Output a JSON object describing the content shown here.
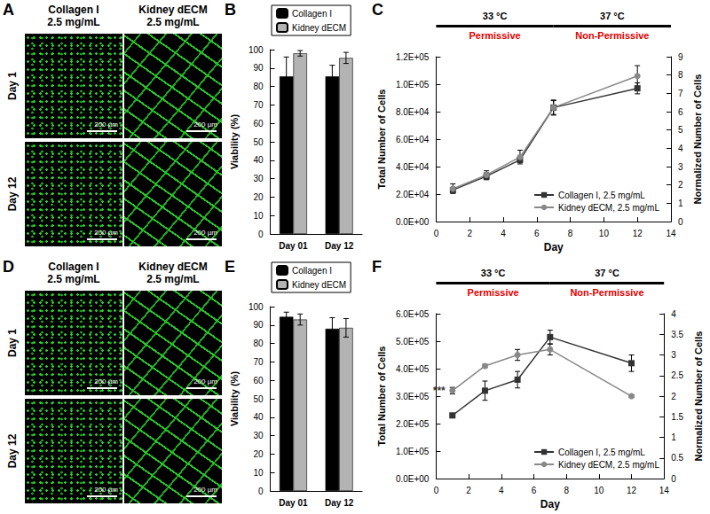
{
  "image_panels": [
    {
      "panel": "A",
      "columns": [
        {
          "title": "Collagen I",
          "subtitle": "2.5 mg/mL"
        },
        {
          "title": "Kidney dECM",
          "subtitle": "2.5 mg/mL"
        }
      ],
      "rows": [
        "Day 1",
        "Day 12"
      ],
      "scale_bar": "200 µm"
    },
    {
      "panel": "D",
      "columns": [
        {
          "title": "Collagen I",
          "subtitle": "2.5 mg/mL"
        },
        {
          "title": "Kidney dECM",
          "subtitle": "2.5 mg/mL"
        }
      ],
      "rows": [
        "Day 1",
        "Day 12"
      ],
      "scale_bar": "200 µm"
    }
  ],
  "chart_data": [
    {
      "panel": "B",
      "type": "bar",
      "ylabel": "Viability (%)",
      "categories": [
        "Day 01",
        "Day 12"
      ],
      "series": [
        {
          "name": "Collagen I",
          "color": "#000000",
          "values": [
            85.5,
            85.5
          ],
          "errors": [
            10.5,
            6
          ]
        },
        {
          "name": "Kidney dECM",
          "color": "#b3b3b3",
          "values": [
            98,
            95.5
          ],
          "errors": [
            1.5,
            3
          ]
        }
      ],
      "ylim": [
        0,
        100
      ],
      "yticks": [
        0,
        10,
        20,
        30,
        40,
        50,
        60,
        70,
        80,
        90,
        100
      ],
      "grid": false,
      "legend": "top"
    },
    {
      "panel": "C",
      "type": "line",
      "xlabel": "Day",
      "ylabel": "Total Number of Cells",
      "y2label": "Normalized Number of Cells",
      "x": [
        1,
        3,
        5,
        7,
        12
      ],
      "series": [
        {
          "name": "Collagen I, 2.5 mg/mL",
          "color": "#333333",
          "marker": "square",
          "line_style": "solid",
          "values": [
            23000,
            33000,
            45000,
            83000,
            97000
          ],
          "errors": [
            1500,
            2500,
            2000,
            5000,
            4000
          ]
        },
        {
          "name": "Kidney dECM, 2.5 mg/mL",
          "color": "#888888",
          "marker": "circle",
          "line_style": "solid",
          "values": [
            24000,
            34000,
            47000,
            83000,
            106000
          ],
          "errors": [
            3500,
            3000,
            5000,
            5500,
            7500
          ]
        }
      ],
      "xlim": [
        0,
        14
      ],
      "xticks": [
        0,
        2,
        4,
        6,
        8,
        10,
        12,
        14
      ],
      "ylim": [
        0,
        120000
      ],
      "yticks": [
        {
          "value": 0,
          "label": "0.0E+00"
        },
        {
          "value": 20000,
          "label": "2.0E+04"
        },
        {
          "value": 40000,
          "label": "4.0E+04"
        },
        {
          "value": 60000,
          "label": "6.0E+04"
        },
        {
          "value": 80000,
          "label": "8.0E+04"
        },
        {
          "value": 100000,
          "label": "1.0E+05"
        },
        {
          "value": 120000,
          "label": "1.2E+05"
        }
      ],
      "y2lim": [
        0,
        9
      ],
      "y2ticks": [
        0,
        1,
        2,
        3,
        4,
        5,
        6,
        7,
        8,
        9
      ],
      "periods": [
        {
          "label": "33 °C",
          "sublabel": "Permissive",
          "start": 0,
          "end": 7
        },
        {
          "label": "37 °C",
          "sublabel": "Non-Permissive",
          "start": 7,
          "end": 14
        }
      ],
      "grid": false,
      "legend": "lower right"
    },
    {
      "panel": "E",
      "type": "bar",
      "ylabel": "Viability (%)",
      "categories": [
        "Day 01",
        "Day 12"
      ],
      "series": [
        {
          "name": "Collagen I",
          "color": "#000000",
          "values": [
            94.5,
            88
          ],
          "errors": [
            2.5,
            6
          ]
        },
        {
          "name": "Kidney dECM",
          "color": "#b3b3b3",
          "values": [
            93,
            88.5
          ],
          "errors": [
            3,
            5
          ]
        }
      ],
      "ylim": [
        0,
        100
      ],
      "yticks": [
        0,
        10,
        20,
        30,
        40,
        50,
        60,
        70,
        80,
        90,
        100
      ],
      "grid": false,
      "legend": "top"
    },
    {
      "panel": "F",
      "type": "line",
      "xlabel": "Day",
      "ylabel": "Total Number of Cells",
      "y2label": "Normalized Number of Cells",
      "x": [
        1,
        3,
        5,
        7,
        12
      ],
      "series": [
        {
          "name": "Collagen I, 2.5 mg/mL",
          "color": "#333333",
          "marker": "square",
          "line_style": "solid",
          "values": [
            230000,
            320000,
            360000,
            515000,
            420000
          ],
          "errors": [
            4000,
            35000,
            30000,
            25000,
            30000
          ]
        },
        {
          "name": "Kidney dECM, 2.5 mg/mL",
          "color": "#888888",
          "marker": "circle",
          "line_style": "solid",
          "values": [
            320000,
            410000,
            450000,
            470000,
            300000
          ],
          "errors": [
            12000,
            6000,
            20000,
            20000,
            5000
          ]
        }
      ],
      "xlim": [
        0,
        14
      ],
      "xticks": [
        0,
        2,
        4,
        6,
        8,
        10,
        12,
        14
      ],
      "ylim": [
        0,
        600000
      ],
      "yticks": [
        {
          "value": 0,
          "label": "0.0E+00"
        },
        {
          "value": 100000,
          "label": "1.0E+05"
        },
        {
          "value": 200000,
          "label": "2.0E+05"
        },
        {
          "value": 300000,
          "label": "3.0E+05"
        },
        {
          "value": 400000,
          "label": "4.0E+05"
        },
        {
          "value": 500000,
          "label": "5.0E+05"
        },
        {
          "value": 600000,
          "label": "6.0E+05"
        }
      ],
      "y2lim": [
        0,
        4
      ],
      "y2ticks": [
        0,
        0.5,
        1,
        1.5,
        2,
        2.5,
        3,
        3.5,
        4
      ],
      "periods": [
        {
          "label": "33 °C",
          "sublabel": "Permissive",
          "start": 0,
          "end": 7
        },
        {
          "label": "37 °C",
          "sublabel": "Non-Permissive",
          "start": 7,
          "end": 14
        }
      ],
      "annotations": [
        {
          "text": "***",
          "x": 1,
          "series": "Kidney dECM, 2.5 mg/mL"
        }
      ],
      "grid": false,
      "legend": "lower right"
    }
  ]
}
